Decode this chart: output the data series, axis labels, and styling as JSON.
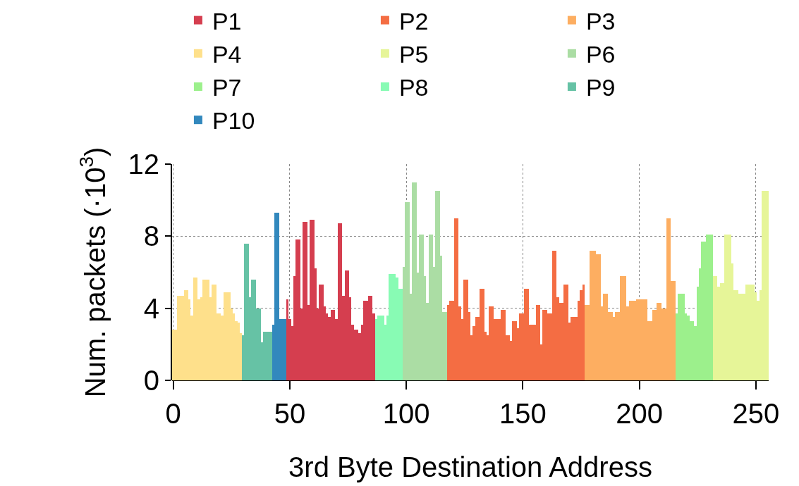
{
  "chart_data": {
    "type": "bar",
    "xlabel": "3rd Byte Destination Address",
    "ylabel": "Num. packets (·10$^{3}$)",
    "xlim": [
      -0.5,
      255.5
    ],
    "xticks": [
      0,
      50,
      100,
      150,
      200,
      250
    ],
    "ylim": [
      0,
      12
    ],
    "yticks": [
      0,
      4,
      8,
      12
    ],
    "grid": true,
    "legend": "top",
    "series": [
      {
        "name": "P1",
        "color": "#d53e4f",
        "x": [
          49,
          50,
          51,
          52,
          53,
          54,
          55,
          56,
          57,
          58,
          59,
          60,
          61,
          62,
          63,
          64,
          65,
          66,
          67,
          68,
          69,
          70,
          71,
          72,
          73,
          74,
          75,
          76,
          77,
          78,
          79,
          80,
          81,
          82,
          83,
          84,
          85,
          86
        ],
        "values": [
          4.5,
          3.4,
          3.0,
          5.8,
          7.8,
          7.8,
          4.0,
          8.8,
          8.8,
          4.2,
          8.9,
          8.9,
          6.2,
          4.0,
          5.3,
          5.3,
          4.1,
          3.7,
          3.5,
          3.9,
          3.9,
          3.4,
          8.7,
          8.7,
          4.7,
          6.1,
          6.1,
          4.6,
          3.1,
          2.8,
          2.8,
          2.6,
          3.1,
          4.4,
          4.4,
          4.7,
          4.7,
          3.7
        ]
      },
      {
        "name": "P2",
        "color": "#f46d43",
        "x": [
          118,
          119,
          120,
          121,
          122,
          123,
          124,
          125,
          126,
          127,
          128,
          129,
          130,
          131,
          132,
          133,
          134,
          135,
          136,
          137,
          138,
          139,
          140,
          141,
          142,
          143,
          144,
          145,
          146,
          147,
          148,
          149,
          150,
          151,
          152,
          153,
          154,
          155,
          156,
          157,
          158,
          159,
          160,
          161,
          162,
          163,
          164,
          165,
          166,
          167,
          168,
          169,
          170,
          171,
          172,
          173,
          174,
          175,
          176
        ],
        "values": [
          4.2,
          4.4,
          4.4,
          9.0,
          9.0,
          4.1,
          3.4,
          5.6,
          5.6,
          3.8,
          2.5,
          3.0,
          3.5,
          3.5,
          5.1,
          5.1,
          2.7,
          2.5,
          4.1,
          4.1,
          3.4,
          3.4,
          3.4,
          3.9,
          3.9,
          2.5,
          2.5,
          2.2,
          3.3,
          3.3,
          2.9,
          3.7,
          3.7,
          5.1,
          5.1,
          3.1,
          3.1,
          3.1,
          4.2,
          4.2,
          2.0,
          3.9,
          3.9,
          3.7,
          3.7,
          7.2,
          7.2,
          4.6,
          4.3,
          4.3,
          5.3,
          5.3,
          3.2,
          3.5,
          3.5,
          3.5,
          4.4,
          5.0,
          5.3
        ]
      },
      {
        "name": "P3",
        "color": "#fdae61",
        "x": [
          177,
          178,
          179,
          180,
          181,
          182,
          183,
          184,
          185,
          186,
          187,
          188,
          189,
          190,
          191,
          192,
          193,
          194,
          195,
          196,
          197,
          198,
          199,
          200,
          201,
          202,
          203,
          204,
          205,
          206,
          207,
          208,
          209,
          210,
          211,
          212,
          213,
          214,
          215
        ],
        "values": [
          4.2,
          4.2,
          7.2,
          7.2,
          7.2,
          7.0,
          7.0,
          4.1,
          4.8,
          4.8,
          3.8,
          3.8,
          3.5,
          3.8,
          3.8,
          5.8,
          5.8,
          5.8,
          4.1,
          4.4,
          4.4,
          4.4,
          4.5,
          4.5,
          4.5,
          4.5,
          4.5,
          3.3,
          3.3,
          3.9,
          3.9,
          4.3,
          4.3,
          4.0,
          4.0,
          9.0,
          9.0,
          5.5,
          5.5
        ]
      },
      {
        "name": "P4",
        "color": "#fee08b",
        "x": [
          0,
          1,
          2,
          3,
          4,
          5,
          6,
          7,
          8,
          9,
          10,
          11,
          12,
          13,
          14,
          15,
          16,
          17,
          18,
          19,
          20,
          21,
          22,
          23,
          24,
          25,
          26,
          27,
          28,
          29
        ],
        "values": [
          2.8,
          2.8,
          4.7,
          4.7,
          4.7,
          5.0,
          5.0,
          4.5,
          3.6,
          5.7,
          5.7,
          4.5,
          4.6,
          5.6,
          5.6,
          5.6,
          4.6,
          5.3,
          5.3,
          3.7,
          3.7,
          3.6,
          4.9,
          4.9,
          4.9,
          4.0,
          3.7,
          3.3,
          3.2,
          2.6
        ]
      },
      {
        "name": "P5",
        "color": "#e6f598",
        "x": [
          232,
          233,
          234,
          235,
          236,
          237,
          238,
          239,
          240,
          241,
          242,
          243,
          244,
          245,
          246,
          247,
          248,
          249,
          250,
          251,
          252,
          253,
          254,
          255
        ],
        "values": [
          5.8,
          5.8,
          5.2,
          5.4,
          5.4,
          8.1,
          8.1,
          8.1,
          6.5,
          5.0,
          5.0,
          4.8,
          4.8,
          4.8,
          5.3,
          5.3,
          5.3,
          5.3,
          4.9,
          4.4,
          5.0,
          10.5,
          10.5,
          10.5
        ]
      },
      {
        "name": "P6",
        "color": "#abdda4",
        "x": [
          99,
          100,
          101,
          102,
          103,
          104,
          105,
          106,
          107,
          108,
          109,
          110,
          111,
          112,
          113,
          114,
          115,
          116,
          117
        ],
        "values": [
          6.3,
          9.9,
          9.9,
          4.8,
          11.0,
          11.0,
          6.0,
          8.1,
          8.1,
          5.8,
          4.3,
          8.1,
          8.1,
          6.3,
          10.5,
          10.5,
          6.9,
          3.8,
          3.8
        ]
      },
      {
        "name": "P7",
        "color": "#9cf08c",
        "x": [
          216,
          217,
          218,
          219,
          220,
          221,
          222,
          223,
          224,
          225,
          226,
          227,
          228,
          229,
          230,
          231
        ],
        "values": [
          3.7,
          4.8,
          4.8,
          4.8,
          3.7,
          3.6,
          3.3,
          3.3,
          3.0,
          5.2,
          6.2,
          7.7,
          7.7,
          8.1,
          8.1,
          8.1
        ]
      },
      {
        "name": "P8",
        "color": "#88fbb4",
        "x": [
          87,
          88,
          89,
          90,
          91,
          92,
          93,
          94,
          95,
          96,
          97,
          98
        ],
        "values": [
          3.4,
          3.6,
          3.6,
          3.6,
          3.1,
          3.6,
          5.9,
          5.9,
          5.9,
          5.7,
          5.1,
          5.1
        ]
      },
      {
        "name": "P9",
        "color": "#66c2a5",
        "x": [
          30,
          31,
          32,
          33,
          34,
          35,
          36,
          37,
          38,
          39,
          40,
          41,
          42
        ],
        "values": [
          2.5,
          7.6,
          7.6,
          4.6,
          5.6,
          5.6,
          4.0,
          4.0,
          2.1,
          2.7,
          2.7,
          2.7,
          2.7
        ]
      },
      {
        "name": "P10",
        "color": "#3288bd",
        "x": [
          43,
          44,
          45,
          46,
          47,
          48
        ],
        "values": [
          3.1,
          9.3,
          9.3,
          3.4,
          3.4,
          3.4
        ]
      }
    ]
  }
}
